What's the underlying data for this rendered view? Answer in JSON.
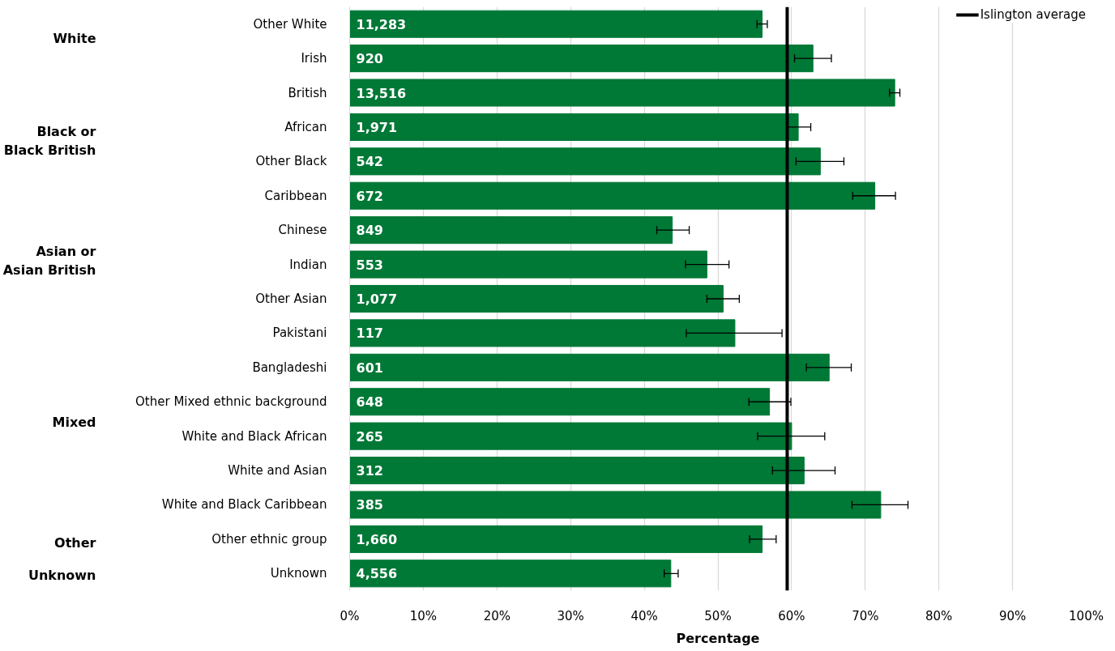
{
  "chart_data": {
    "type": "bar",
    "orientation": "horizontal",
    "xlabel": "Percentage",
    "categories": [
      "Other White",
      "Irish",
      "British",
      "African",
      "Other Black",
      "Caribbean",
      "Chinese",
      "Indian",
      "Other Asian",
      "Pakistani",
      "Bangladeshi",
      "Other Mixed ethnic background",
      "White and Black African",
      "White and Asian",
      "White and Black Caribbean",
      "Other ethnic group",
      "Unknown"
    ],
    "values": [
      56.0,
      62.9,
      74.0,
      60.9,
      63.9,
      71.3,
      43.8,
      48.5,
      50.7,
      52.3,
      65.1,
      57.0,
      60.0,
      61.7,
      72.1,
      56.0,
      43.6
    ],
    "errors": [
      [
        55.3,
        56.7
      ],
      [
        60.4,
        65.4
      ],
      [
        73.3,
        74.7
      ],
      [
        59.5,
        62.6
      ],
      [
        60.6,
        67.1
      ],
      [
        68.3,
        74.1
      ],
      [
        41.7,
        46.1
      ],
      [
        45.6,
        51.5
      ],
      [
        48.5,
        52.9
      ],
      [
        45.7,
        58.7
      ],
      [
        62.0,
        68.1
      ],
      [
        54.2,
        59.9
      ],
      [
        55.4,
        64.5
      ],
      [
        57.4,
        65.9
      ],
      [
        68.2,
        75.8
      ],
      [
        54.3,
        57.9
      ],
      [
        42.7,
        44.6
      ]
    ],
    "color": "#007836",
    "xlim": [
      0,
      100
    ],
    "xticks": [
      {
        "value": 0,
        "label": "0%"
      },
      {
        "value": 10,
        "label": "10%"
      },
      {
        "value": 20,
        "label": "20%"
      },
      {
        "value": 30,
        "label": "30%"
      },
      {
        "value": 40,
        "label": "40%"
      },
      {
        "value": 50,
        "label": "50%"
      },
      {
        "value": 60,
        "label": "60%"
      },
      {
        "value": 70,
        "label": "70%"
      },
      {
        "value": 80,
        "label": "80%"
      },
      {
        "value": 90,
        "label": "90%"
      },
      {
        "value": 100,
        "label": "100%"
      }
    ],
    "ref_lines": [
      {
        "axis": "x",
        "value": 59.4,
        "label": "Islington average",
        "color": "#000000"
      }
    ],
    "annotations": [
      "White",
      "Black or\nBlack British",
      "Asian or\nAsian British",
      "Mixed",
      "Other",
      "Unknown",
      {
        "text": "11,283",
        "y": "Other White"
      },
      {
        "text": "920",
        "y": "Irish"
      },
      {
        "text": "13,516",
        "y": "British"
      },
      {
        "text": "1,971",
        "y": "African"
      },
      {
        "text": "542",
        "y": "Other Black"
      },
      {
        "text": "672",
        "y": "Caribbean"
      },
      {
        "text": "849",
        "y": "Chinese"
      },
      {
        "text": "553",
        "y": "Indian"
      },
      {
        "text": "1,077",
        "y": "Other Asian"
      },
      {
        "text": "117",
        "y": "Pakistani"
      },
      {
        "text": "601",
        "y": "Bangladeshi"
      },
      {
        "text": "648",
        "y": "Other Mixed ethnic background"
      },
      {
        "text": "265",
        "y": "White and Black African"
      },
      {
        "text": "312",
        "y": "White and Asian"
      },
      {
        "text": "385",
        "y": "White and Black Caribbean"
      },
      {
        "text": "1,660",
        "y": "Other ethnic group"
      },
      {
        "text": "4,556",
        "y": "Unknown"
      }
    ],
    "grid": "x",
    "legend": "top right"
  }
}
